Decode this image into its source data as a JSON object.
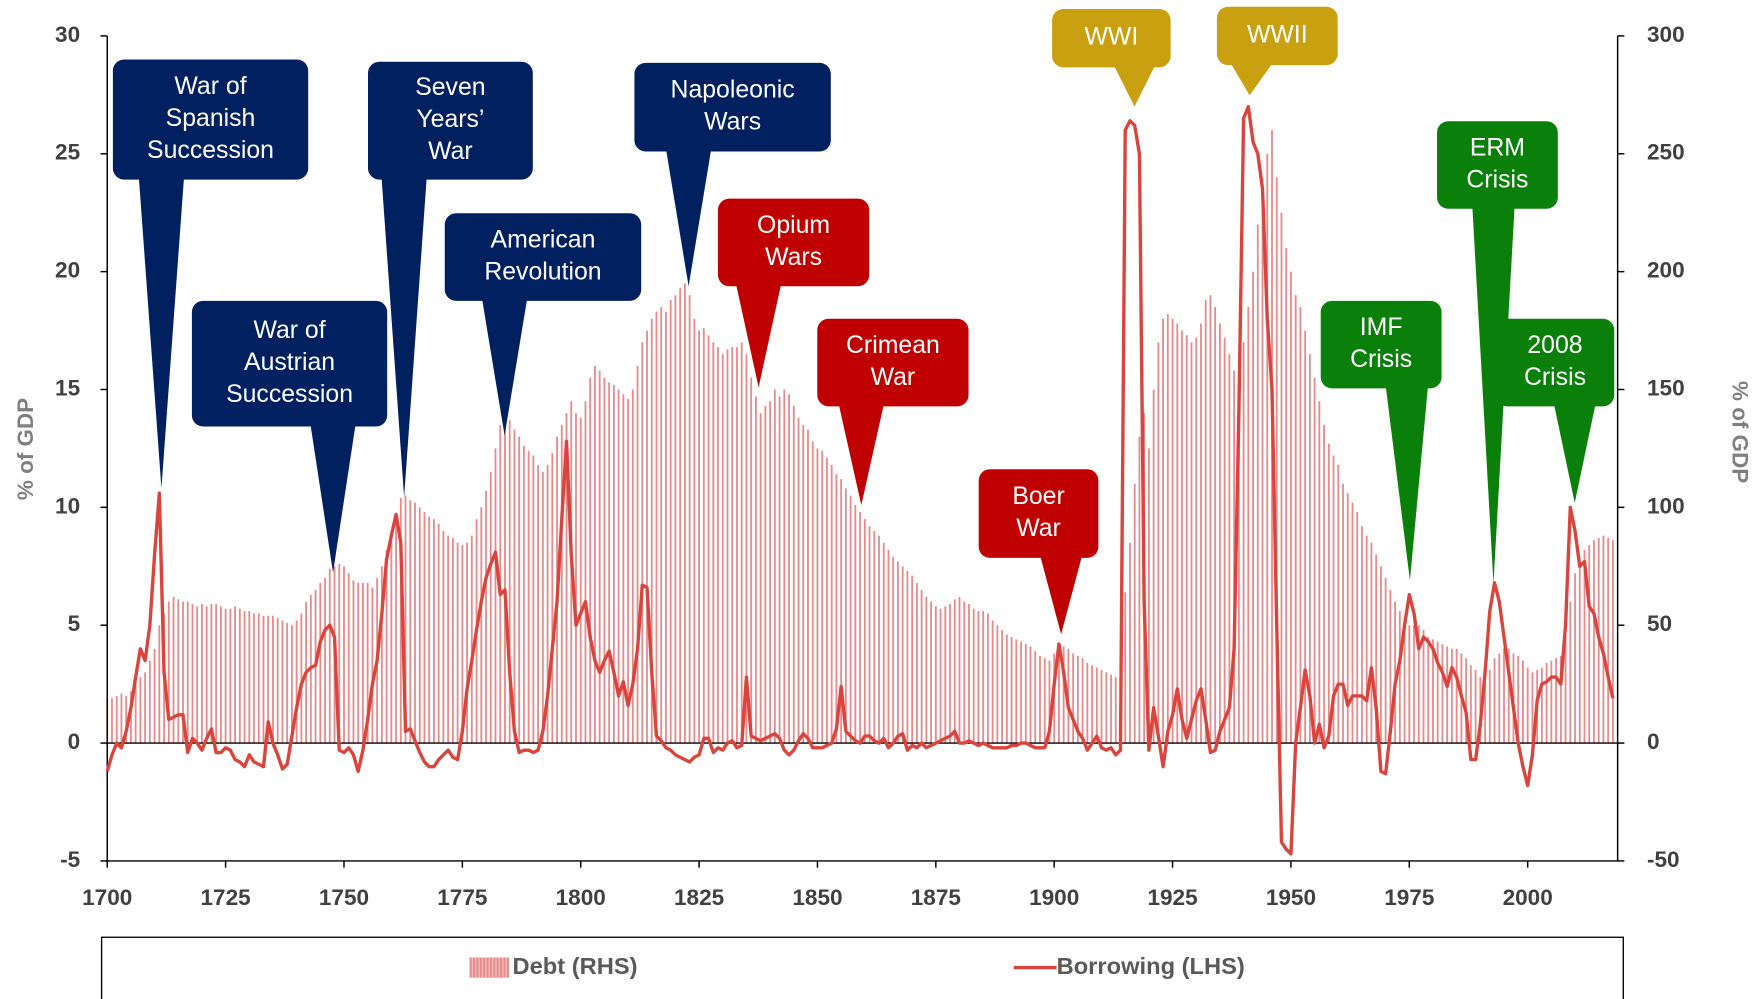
{
  "chart_data": {
    "type": "bar",
    "ylabel": "% of GDP",
    "y2label": "% of GDP",
    "xlim": [
      1700,
      2019
    ],
    "xticks": [
      1700,
      1725,
      1750,
      1775,
      1800,
      1825,
      1850,
      1875,
      1900,
      1925,
      1950,
      1975,
      2000
    ],
    "ylim": [
      -5,
      30
    ],
    "yticks": [
      -5,
      0,
      5,
      10,
      15,
      20,
      25,
      30
    ],
    "y2lim": [
      -50,
      300
    ],
    "y2ticks": [
      -50,
      0,
      50,
      100,
      150,
      200,
      250,
      300
    ],
    "legend": "bottom",
    "x": [
      1700,
      1701,
      1702,
      1703,
      1704,
      1705,
      1706,
      1707,
      1708,
      1709,
      1710,
      1711,
      1712,
      1713,
      1714,
      1715,
      1716,
      1717,
      1718,
      1719,
      1720,
      1721,
      1722,
      1723,
      1724,
      1725,
      1726,
      1727,
      1728,
      1729,
      1730,
      1731,
      1732,
      1733,
      1734,
      1735,
      1736,
      1737,
      1738,
      1739,
      1740,
      1741,
      1742,
      1743,
      1744,
      1745,
      1746,
      1747,
      1748,
      1749,
      1750,
      1751,
      1752,
      1753,
      1754,
      1755,
      1756,
      1757,
      1758,
      1759,
      1760,
      1761,
      1762,
      1763,
      1764,
      1765,
      1766,
      1767,
      1768,
      1769,
      1770,
      1771,
      1772,
      1773,
      1774,
      1775,
      1776,
      1777,
      1778,
      1779,
      1780,
      1781,
      1782,
      1783,
      1784,
      1785,
      1786,
      1787,
      1788,
      1789,
      1790,
      1791,
      1792,
      1793,
      1794,
      1795,
      1796,
      1797,
      1798,
      1799,
      1800,
      1801,
      1802,
      1803,
      1804,
      1805,
      1806,
      1807,
      1808,
      1809,
      1810,
      1811,
      1812,
      1813,
      1814,
      1815,
      1816,
      1817,
      1818,
      1819,
      1820,
      1821,
      1822,
      1823,
      1824,
      1825,
      1826,
      1827,
      1828,
      1829,
      1830,
      1831,
      1832,
      1833,
      1834,
      1835,
      1836,
      1837,
      1838,
      1839,
      1840,
      1841,
      1842,
      1843,
      1844,
      1845,
      1846,
      1847,
      1848,
      1849,
      1850,
      1851,
      1852,
      1853,
      1854,
      1855,
      1856,
      1857,
      1858,
      1859,
      1860,
      1861,
      1862,
      1863,
      1864,
      1865,
      1866,
      1867,
      1868,
      1869,
      1870,
      1871,
      1872,
      1873,
      1874,
      1875,
      1876,
      1877,
      1878,
      1879,
      1880,
      1881,
      1882,
      1883,
      1884,
      1885,
      1886,
      1887,
      1888,
      1889,
      1890,
      1891,
      1892,
      1893,
      1894,
      1895,
      1896,
      1897,
      1898,
      1899,
      1900,
      1901,
      1902,
      1903,
      1904,
      1905,
      1906,
      1907,
      1908,
      1909,
      1910,
      1911,
      1912,
      1913,
      1914,
      1915,
      1916,
      1917,
      1918,
      1919,
      1920,
      1921,
      1922,
      1923,
      1924,
      1925,
      1926,
      1927,
      1928,
      1929,
      1930,
      1931,
      1932,
      1933,
      1934,
      1935,
      1936,
      1937,
      1938,
      1939,
      1940,
      1941,
      1942,
      1943,
      1944,
      1945,
      1946,
      1947,
      1948,
      1949,
      1950,
      1951,
      1952,
      1953,
      1954,
      1955,
      1956,
      1957,
      1958,
      1959,
      1960,
      1961,
      1962,
      1963,
      1964,
      1965,
      1966,
      1967,
      1968,
      1969,
      1970,
      1971,
      1972,
      1973,
      1974,
      1975,
      1976,
      1977,
      1978,
      1979,
      1980,
      1981,
      1982,
      1983,
      1984,
      1985,
      1986,
      1987,
      1988,
      1989,
      1990,
      1991,
      1992,
      1993,
      1994,
      1995,
      1996,
      1997,
      1998,
      1999,
      2000,
      2001,
      2002,
      2003,
      2004,
      2005,
      2006,
      2007,
      2008,
      2009,
      2010,
      2011,
      2012,
      2013,
      2014,
      2015,
      2016,
      2017,
      2018
    ],
    "series": [
      {
        "name": "Debt (RHS)",
        "type": "bar",
        "axis": "y2",
        "color": "#e8898a",
        "values": [
          19,
          19,
          20,
          21,
          20,
          22,
          25,
          28,
          30,
          35,
          40,
          50,
          55,
          60,
          62,
          61,
          60,
          60,
          59,
          58,
          59,
          58,
          59,
          59,
          58,
          57,
          57,
          58,
          57,
          56,
          56,
          55,
          55,
          54,
          54,
          54,
          53,
          52,
          51,
          50,
          52,
          55,
          60,
          63,
          65,
          68,
          70,
          74,
          75,
          76,
          75,
          72,
          69,
          68,
          68,
          68,
          66,
          70,
          75,
          82,
          90,
          97,
          104,
          105,
          103,
          102,
          100,
          98,
          96,
          95,
          93,
          90,
          88,
          87,
          85,
          84,
          85,
          88,
          95,
          100,
          107,
          115,
          125,
          135,
          138,
          137,
          133,
          130,
          126,
          124,
          122,
          118,
          115,
          118,
          123,
          130,
          135,
          140,
          145,
          140,
          138,
          145,
          155,
          160,
          158,
          155,
          153,
          152,
          150,
          148,
          146,
          150,
          160,
          170,
          175,
          180,
          183,
          185,
          183,
          188,
          190,
          193,
          195,
          190,
          180,
          175,
          176,
          173,
          170,
          168,
          165,
          167,
          168,
          168,
          170,
          165,
          155,
          147,
          140,
          143,
          145,
          150,
          147,
          150,
          148,
          143,
          138,
          135,
          133,
          128,
          125,
          124,
          121,
          118,
          114,
          112,
          108,
          105,
          101,
          98,
          95,
          92,
          90,
          88,
          85,
          82,
          79,
          77,
          75,
          73,
          71,
          68,
          65,
          62,
          60,
          58,
          57,
          58,
          59,
          61,
          62,
          60,
          59,
          57,
          56,
          56,
          55,
          52,
          50,
          48,
          46,
          45,
          44,
          43,
          42,
          41,
          39,
          37,
          36,
          35,
          38,
          40,
          41,
          40,
          38,
          37,
          36,
          34,
          33,
          32,
          31,
          30,
          29,
          28,
          35,
          64,
          85,
          110,
          130,
          140,
          125,
          150,
          170,
          180,
          182,
          180,
          178,
          175,
          173,
          170,
          172,
          178,
          188,
          190,
          185,
          178,
          172,
          165,
          158,
          160,
          170,
          185,
          200,
          220,
          240,
          250,
          260,
          240,
          225,
          210,
          200,
          190,
          185,
          175,
          165,
          155,
          145,
          135,
          127,
          122,
          118,
          110,
          106,
          102,
          98,
          92,
          88,
          85,
          80,
          75,
          70,
          65,
          60,
          56,
          53,
          50,
          50,
          50,
          48,
          45,
          44,
          43,
          42,
          41,
          40,
          40,
          38,
          36,
          33,
          31,
          28,
          27,
          31,
          36,
          38,
          40,
          40,
          38,
          37,
          35,
          32,
          30,
          31,
          32,
          34,
          35,
          36,
          37,
          45,
          60,
          72,
          78,
          82,
          84,
          86,
          87,
          88,
          87,
          86
        ]
      },
      {
        "name": "Borrowing (LHS)",
        "type": "line",
        "axis": "y",
        "color": "#d9453c",
        "values": [
          -1.2,
          -0.5,
          0,
          -0.2,
          0.5,
          1.5,
          2.8,
          4,
          3.5,
          5,
          8,
          10.6,
          3,
          1,
          1.1,
          1.2,
          1.2,
          -0.4,
          0.2,
          0,
          -0.3,
          0.2,
          0.6,
          -0.4,
          -0.4,
          -0.2,
          -0.3,
          -0.7,
          -0.8,
          -1,
          -0.5,
          -0.8,
          -0.9,
          -1,
          0.9,
          0,
          -0.5,
          -1.1,
          -0.9,
          0.3,
          1.5,
          2.5,
          3,
          3.2,
          3.3,
          4.3,
          4.8,
          5,
          4.5,
          -0.3,
          -0.4,
          -0.2,
          -0.5,
          -1.2,
          -0.3,
          1,
          2.5,
          3.5,
          5.5,
          7.8,
          8.8,
          9.7,
          8.5,
          0.5,
          0.6,
          0.1,
          -0.4,
          -0.8,
          -1,
          -1,
          -0.7,
          -0.5,
          -0.3,
          -0.6,
          -0.7,
          0.5,
          2.3,
          3.5,
          4.8,
          6,
          7,
          7.6,
          8.1,
          6.3,
          6.5,
          3,
          0.5,
          -0.4,
          -0.3,
          -0.3,
          -0.4,
          -0.3,
          0.5,
          2,
          4,
          6,
          9.5,
          12.8,
          8,
          5,
          5.5,
          6,
          4.5,
          3.5,
          3,
          3.5,
          3.9,
          3,
          2,
          2.6,
          1.6,
          2.5,
          4,
          6.7,
          6.6,
          3,
          0.3,
          0.1,
          -0.2,
          -0.3,
          -0.5,
          -0.6,
          -0.7,
          -0.8,
          -0.6,
          -0.5,
          0.2,
          0.2,
          -0.4,
          -0.2,
          -0.3,
          0,
          0.1,
          -0.2,
          -0.1,
          2.8,
          0.3,
          0.2,
          0.1,
          0.2,
          0.3,
          0.4,
          0.2,
          -0.3,
          -0.5,
          -0.3,
          0.1,
          0.4,
          0.2,
          -0.2,
          -0.2,
          -0.2,
          -0.1,
          0,
          0.6,
          2.4,
          0.5,
          0.3,
          0.1,
          0,
          0.3,
          0.3,
          0.1,
          0,
          0.2,
          -0.2,
          0,
          0.3,
          0.4,
          -0.3,
          -0.1,
          -0.2,
          0,
          -0.2,
          -0.1,
          0,
          0.1,
          0.2,
          0.3,
          0.5,
          0,
          0,
          0.1,
          0,
          -0.1,
          0,
          -0.1,
          -0.2,
          -0.2,
          -0.2,
          -0.2,
          -0.1,
          -0.1,
          0,
          0,
          -0.1,
          -0.2,
          -0.2,
          -0.2,
          0.5,
          2.5,
          4.2,
          3,
          1.5,
          1,
          0.5,
          0.2,
          -0.3,
          0,
          0.3,
          -0.2,
          -0.3,
          -0.2,
          -0.5,
          -0.3,
          26,
          26.4,
          26.2,
          25,
          6,
          -0.3,
          1.5,
          0.3,
          -1,
          0.5,
          1.2,
          2.3,
          1,
          0.2,
          1,
          1.8,
          2.3,
          1,
          -0.4,
          -0.3,
          0.5,
          1,
          1.5,
          4,
          14,
          26.5,
          27,
          25.5,
          25,
          23.5,
          18,
          15,
          5,
          -4.2,
          -4.5,
          -4.7,
          0,
          1.5,
          3.1,
          2,
          0,
          0.8,
          -0.2,
          0.3,
          2,
          2.5,
          2.5,
          1.6,
          2,
          2,
          2,
          1.8,
          3.2,
          1.5,
          -1.2,
          -1.3,
          0.5,
          2.5,
          3.5,
          5,
          6.3,
          5.5,
          4,
          4.5,
          4.3,
          4,
          3.4,
          3,
          2.4,
          3.2,
          2.8,
          2,
          1.3,
          -0.7,
          -0.7,
          0.8,
          3,
          5.6,
          6.8,
          6,
          4.5,
          3,
          1.5,
          0,
          -1,
          -1.8,
          -0.5,
          1.8,
          2.5,
          2.6,
          2.8,
          2.8,
          2.5,
          5,
          10,
          9,
          7.5,
          7.7,
          5.8,
          5.5,
          4.5,
          3.8,
          2.8,
          1.9
        ]
      }
    ],
    "annotations": [
      {
        "text": [
          "War of",
          "Spanish",
          "Succession"
        ],
        "color": "#002060"
      },
      {
        "text": [
          "War of",
          "Austrian",
          "Succession"
        ],
        "color": "#002060"
      },
      {
        "text": [
          "Seven",
          "Years’",
          "War"
        ],
        "color": "#002060"
      },
      {
        "text": [
          "American",
          "Revolution"
        ],
        "color": "#002060"
      },
      {
        "text": [
          "Napoleonic",
          "Wars"
        ],
        "color": "#002060"
      },
      {
        "text": [
          "Opium",
          "Wars"
        ],
        "color": "#c00000"
      },
      {
        "text": [
          "Crimean",
          "War"
        ],
        "color": "#c00000"
      },
      {
        "text": [
          "Boer",
          "War"
        ],
        "color": "#c00000"
      },
      {
        "text": [
          "WWI"
        ],
        "color": "#c9a010"
      },
      {
        "text": [
          "WWII"
        ],
        "color": "#c9a010"
      },
      {
        "text": [
          "ERM",
          "Crisis"
        ],
        "color": "#0a7f0a"
      },
      {
        "text": [
          "IMF",
          "Crisis"
        ],
        "color": "#0a7f0a"
      },
      {
        "text": [
          "2008",
          "Crisis"
        ],
        "color": "#0a7f0a"
      }
    ]
  }
}
